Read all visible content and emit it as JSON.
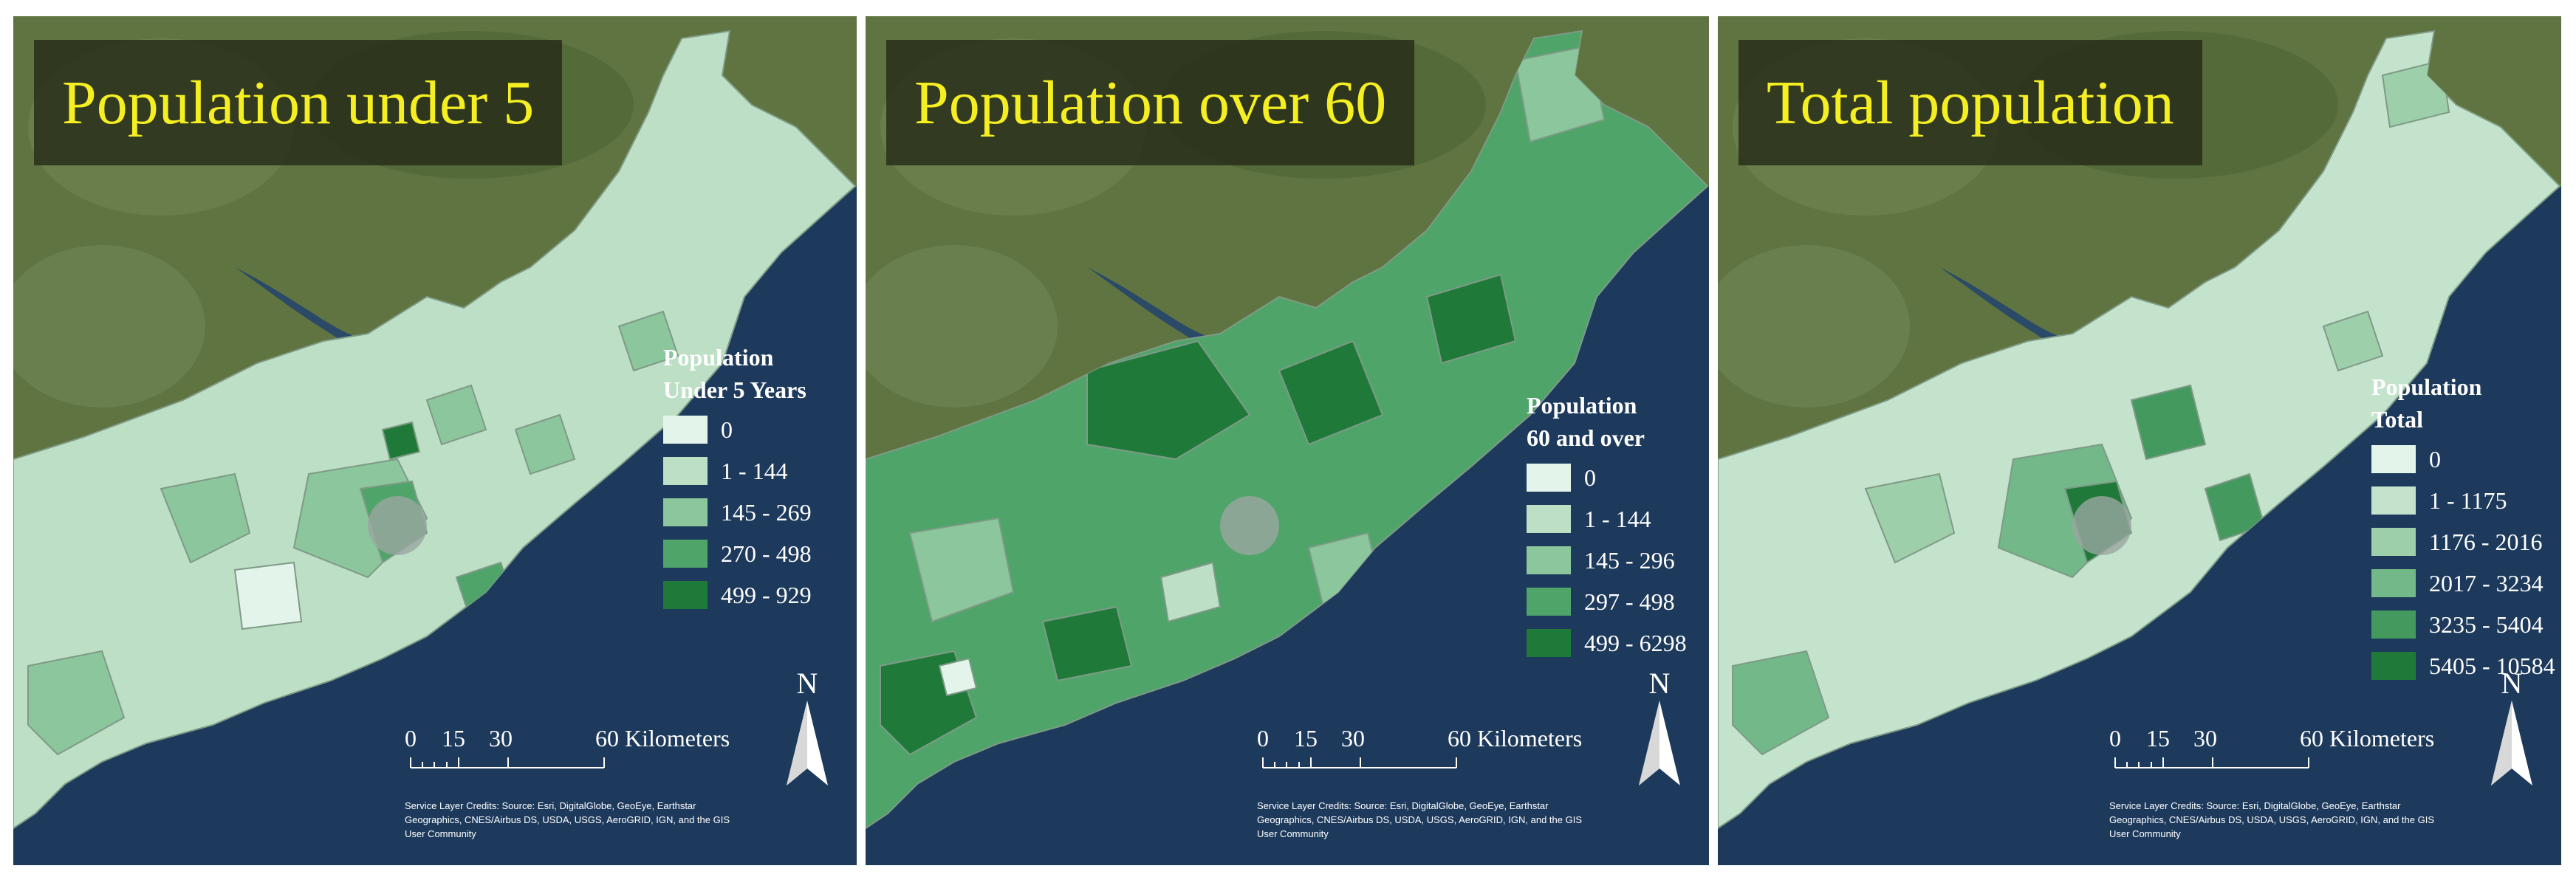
{
  "panels": [
    {
      "title": "Population under 5",
      "legend_title_1": "Population",
      "legend_title_2": "Under 5 Years",
      "classes": [
        {
          "label": "0",
          "color": "#e3f5ea"
        },
        {
          "label": "1 - 144",
          "color": "#bcdfc6"
        },
        {
          "label": "145 - 269",
          "color": "#8cc69c"
        },
        {
          "label": "270 - 498",
          "color": "#4fa46a"
        },
        {
          "label": "499 - 929",
          "color": "#1f7a3a"
        }
      ],
      "scale": {
        "t0": "0",
        "t15": "15",
        "t30": "30",
        "t60": "60 Kilometers"
      },
      "north": "N",
      "credits": "Service Layer Credits: Source: Esri, DigitalGlobe, GeoEye, Earthstar Geographics, CNES/Airbus DS, USDA, USGS, AeroGRID, IGN, and the GIS User Community"
    },
    {
      "title": "Population over 60",
      "legend_title_1": "Population",
      "legend_title_2": "60 and over",
      "classes": [
        {
          "label": "0",
          "color": "#e3f5ea"
        },
        {
          "label": "1 - 144",
          "color": "#bcdfc6"
        },
        {
          "label": "145 - 296",
          "color": "#8cc69c"
        },
        {
          "label": "297 - 498",
          "color": "#4fa46a"
        },
        {
          "label": "499 - 6298",
          "color": "#1f7a3a"
        }
      ],
      "scale": {
        "t0": "0",
        "t15": "15",
        "t30": "30",
        "t60": "60 Kilometers"
      },
      "north": "N",
      "credits": "Service Layer Credits: Source: Esri, DigitalGlobe, GeoEye, Earthstar Geographics, CNES/Airbus DS, USDA, USGS, AeroGRID, IGN, and the GIS User Community"
    },
    {
      "title": "Total population",
      "legend_title_1": "Population",
      "legend_title_2": "Total",
      "classes": [
        {
          "label": "0",
          "color": "#e3f5ea"
        },
        {
          "label": "1 - 1175",
          "color": "#c4e3cc"
        },
        {
          "label": "1176 - 2016",
          "color": "#9dcfab"
        },
        {
          "label": "2017 - 3234",
          "color": "#72b888"
        },
        {
          "label": "3235 - 5404",
          "color": "#449a5e"
        },
        {
          "label": "5405 - 10584",
          "color": "#1f7a3a"
        }
      ],
      "scale": {
        "t0": "0",
        "t15": "15",
        "t30": "30",
        "t60": "60 Kilometers"
      },
      "north": "N",
      "credits": "Service Layer Credits: Source: Esri, DigitalGlobe, GeoEye, Earthstar Geographics, CNES/Airbus DS, USDA, USGS, AeroGRID, IGN, and the GIS User Community"
    }
  ],
  "colors": {
    "ocean": "#1d3a5c",
    "land": "#5f7440",
    "title_text": "#f5ef22",
    "title_bg": "#262c18"
  }
}
